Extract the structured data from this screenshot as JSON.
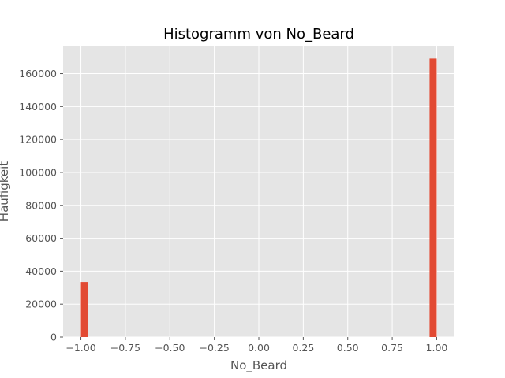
{
  "chart_data": {
    "type": "bar",
    "title": "Histogramm von No_Beard",
    "xlabel": "No_Beard",
    "ylabel": "Häufigkeit",
    "xlim": [
      -1.1,
      1.1
    ],
    "ylim": [
      0,
      177000
    ],
    "x_ticks": [
      -1.0,
      -0.75,
      -0.5,
      -0.25,
      0.0,
      0.25,
      0.5,
      0.75,
      1.0
    ],
    "x_tick_labels": [
      "−1.00",
      "−0.75",
      "−0.50",
      "−0.25",
      "0.00",
      "0.25",
      "0.50",
      "0.75",
      "1.00"
    ],
    "y_ticks": [
      0,
      20000,
      40000,
      60000,
      80000,
      100000,
      120000,
      140000,
      160000
    ],
    "y_tick_labels": [
      "0",
      "20000",
      "40000",
      "60000",
      "80000",
      "100000",
      "120000",
      "140000",
      "160000"
    ],
    "bins": [
      {
        "x0": -1.0,
        "x1": -0.96,
        "value": 33441
      },
      {
        "x0": 0.96,
        "x1": 1.0,
        "value": 169158
      }
    ],
    "grid": true,
    "colors": {
      "background": "#e5e5e5",
      "grid": "#ffffff",
      "bar": "#e24a33",
      "text": "#555555"
    }
  }
}
